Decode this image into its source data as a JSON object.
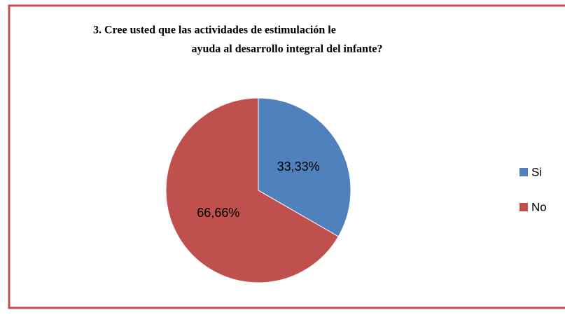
{
  "chart_data": {
    "type": "pie",
    "title": [
      "3.   Cree usted  que las actividades de estimulación le",
      "ayuda al desarrollo integral del infante?"
    ],
    "categories": [
      "Si",
      "No"
    ],
    "values": [
      33.33,
      66.66
    ],
    "value_labels": [
      "33,33%",
      "66,66%"
    ],
    "colors": [
      "#4f81bd",
      "#c0504d"
    ],
    "legend": "right"
  }
}
